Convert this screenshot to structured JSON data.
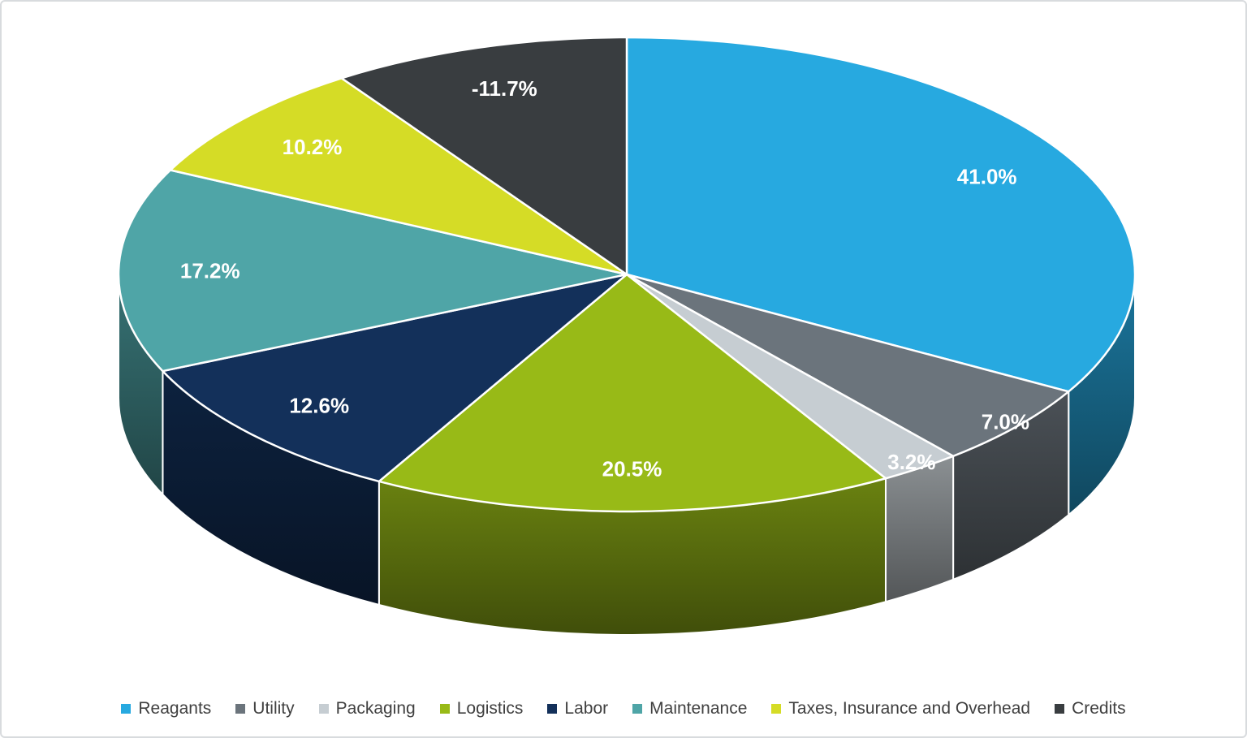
{
  "chart_data": {
    "type": "pie",
    "is_3d": true,
    "title": "",
    "categories": [
      "Reagants",
      "Utility",
      "Packaging",
      "Logistics",
      "Labor",
      "Maintenance",
      "Taxes, Insurance and Overhead",
      "Credits"
    ],
    "values": [
      41.0,
      7.0,
      3.2,
      20.5,
      12.6,
      17.2,
      10.2,
      -11.7
    ],
    "labels": [
      "41.0%",
      "7.0%",
      "3.2%",
      "20.5%",
      "12.6%",
      "17.2%",
      "10.2%",
      "-11.7%"
    ],
    "colors": [
      "#27A9E0",
      "#6B747C",
      "#C6CDD2",
      "#98BA17",
      "#13305A",
      "#4FA5A7",
      "#D5DC26",
      "#393D40"
    ],
    "label_color": "#FFFFFF",
    "start_angle_deg": 0,
    "direction": "clockwise",
    "legend_position": "bottom",
    "legend_text_color": "#404040",
    "slice_border_color": "#FFFFFF",
    "frame_border_color": "#D8DBDE",
    "background_color": "#FFFFFF"
  }
}
